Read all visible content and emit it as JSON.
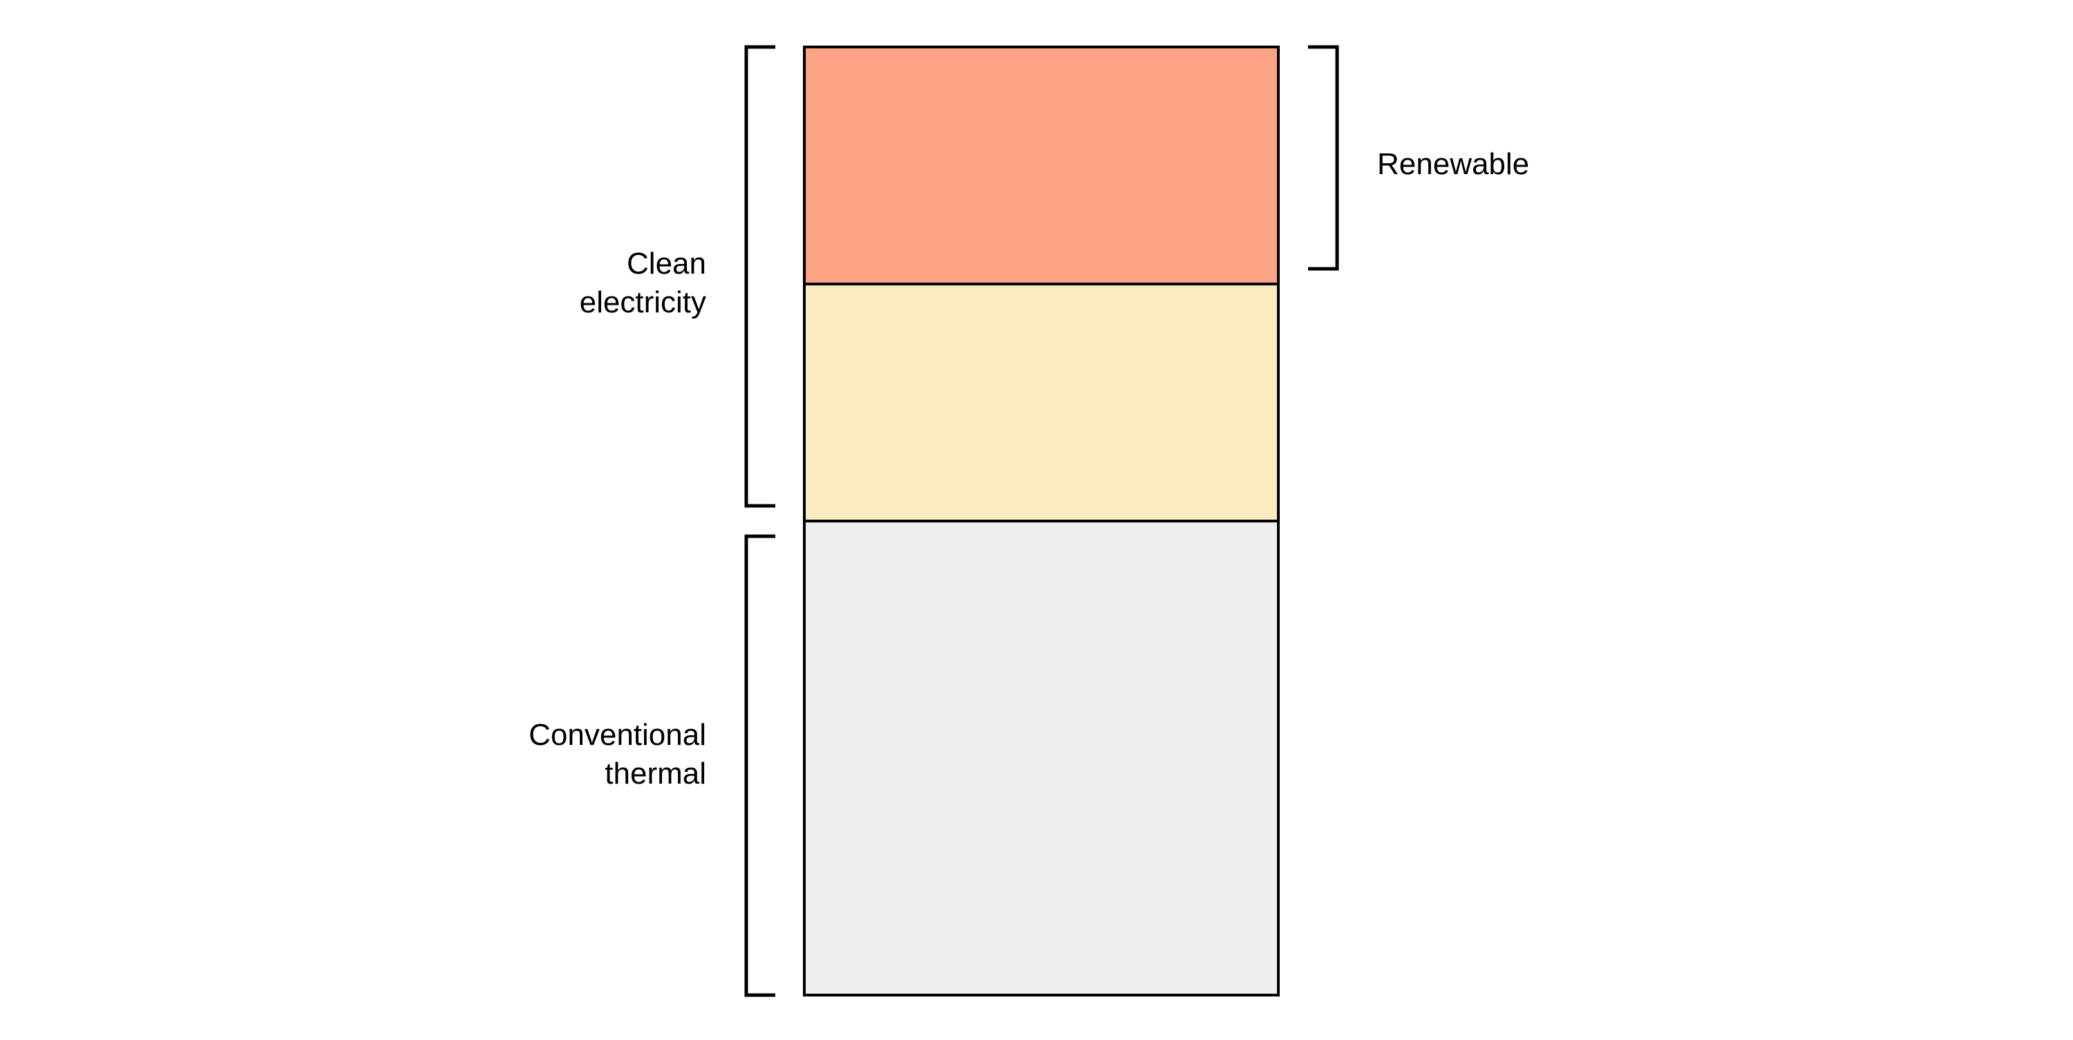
{
  "diagram": {
    "segments": [
      {
        "id": "renewable-segment",
        "color": "#fca285"
      },
      {
        "id": "other-clean-segment",
        "color": "#fbebc1"
      },
      {
        "id": "conventional-segment",
        "color": "#efefef"
      }
    ],
    "outline_color": "#000000",
    "brackets": {
      "clean": {
        "label_line1": "Clean",
        "label_line2": "electricity"
      },
      "conventional": {
        "label_line1": "Conventional",
        "label_line2": "thermal"
      },
      "renewable": {
        "label": "Renewable"
      }
    }
  }
}
